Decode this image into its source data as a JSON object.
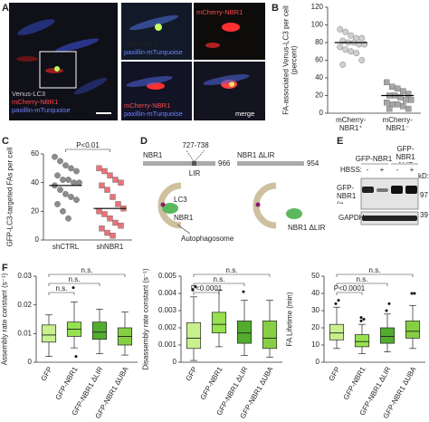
{
  "panel_letters": [
    "A",
    "B",
    "C",
    "D",
    "E",
    "F"
  ],
  "panel_a": {
    "main_labels": [
      "Venus-LC3",
      "mCherry-NBR1",
      "paxillin-mTurquoise"
    ],
    "tiles": [
      [
        "Venus-LC3",
        "paxillin-mTurquoise"
      ],
      [
        "mCherry-NBR1"
      ],
      [
        "mCherry-NBR1",
        "paxillin-mTurquoise"
      ],
      [
        "merge"
      ]
    ]
  },
  "panel_d": {
    "wildtype": {
      "name": "NBR1",
      "length": "966",
      "motif": "LIR",
      "motif_range": "727-738"
    },
    "mutant": {
      "name": "NBR1 ΔLIR",
      "length": "954"
    },
    "cartoon": {
      "lc3": "LC3",
      "cargo": "NBR1",
      "membrane": "Autophagosome",
      "cargo_mutant": "NBR1 ΔLIR"
    }
  },
  "panel_e": {
    "treatment": "HBSS:",
    "groups": [
      "GFP-NBR1",
      "GFP-NBR1 ΔLIR"
    ],
    "lanes": [
      "-",
      "+",
      "-",
      "+"
    ],
    "unit": "kD:",
    "rows": [
      "GFP-NBR1 (α-GFP)",
      "GAPDH"
    ],
    "markers": [
      "97",
      "39"
    ]
  },
  "chart_data": [
    {
      "type": "strip",
      "ylabel": "FA-associated Venus-LC3 per cell (percent)",
      "categories": [
        "mCherry-NBR1⁺",
        "mCherry-NBR1⁻"
      ],
      "series": [
        {
          "marker": "circle",
          "color": "#cfcfcf",
          "values": [
            95,
            92,
            88,
            85,
            85,
            82,
            80,
            80,
            78,
            78,
            75,
            72,
            70,
            68,
            60,
            55
          ],
          "mean": 80
        },
        {
          "marker": "square",
          "color": "#a6a6a6",
          "values": [
            35,
            30,
            28,
            25,
            22,
            20,
            20,
            18,
            15,
            15,
            12,
            10,
            10,
            8,
            5,
            5
          ],
          "mean": 20
        }
      ],
      "ylim": [
        0,
        120
      ],
      "yticks": [
        0,
        20,
        40,
        60,
        80,
        100,
        120
      ]
    },
    {
      "type": "strip",
      "ylabel": "GFP-LC3-targeted FAs per cell",
      "categories": [
        "shCTRL",
        "shNBR1"
      ],
      "series": [
        {
          "marker": "circle",
          "color": "#8c8c8c",
          "values": [
            58,
            55,
            52,
            50,
            48,
            45,
            42,
            42,
            40,
            40,
            38,
            35,
            32,
            30,
            28,
            25,
            20,
            15
          ],
          "mean": 38
        },
        {
          "marker": "square",
          "color": "#e8737a",
          "values": [
            50,
            48,
            45,
            42,
            40,
            38,
            35,
            30,
            25,
            22,
            20,
            18,
            15,
            12,
            10,
            8,
            5,
            3
          ],
          "mean": 22
        }
      ],
      "comparisons": [
        {
          "from": 0,
          "to": 1,
          "label": "P<0.01"
        }
      ],
      "ylim": [
        0,
        60
      ],
      "yticks": [
        0,
        20,
        40,
        60
      ]
    },
    {
      "type": "box",
      "ylabel": "Assembly rate constant (s⁻¹)",
      "categories": [
        "GFP",
        "GFP-NBR1",
        "GFP-NBR1 ΔLIR",
        "GFP-NBR1 ΔUBA"
      ],
      "boxes": [
        {
          "color": "#c8f08e",
          "low": 0.002,
          "q1": 0.007,
          "median": 0.0095,
          "q3": 0.013,
          "high": 0.0165,
          "outliers": []
        },
        {
          "color": "#97e04f",
          "low": 0.005,
          "q1": 0.009,
          "median": 0.0115,
          "q3": 0.014,
          "high": 0.021,
          "outliers": [
            0.026,
            0.002
          ]
        },
        {
          "color": "#52ad2e",
          "low": 0.003,
          "q1": 0.008,
          "median": 0.0105,
          "q3": 0.014,
          "high": 0.0185,
          "outliers": []
        },
        {
          "color": "#86cf44",
          "low": 0.0025,
          "q1": 0.006,
          "median": 0.009,
          "q3": 0.012,
          "high": 0.0175,
          "outliers": []
        }
      ],
      "comparisons": [
        {
          "from": 0,
          "to": 1,
          "label": "n.s."
        },
        {
          "from": 0,
          "to": 2,
          "label": "n.s."
        },
        {
          "from": 0,
          "to": 3,
          "label": "n.s."
        }
      ],
      "ylim": [
        0,
        0.03
      ],
      "yticks": [
        0,
        0.01,
        0.02,
        0.03
      ]
    },
    {
      "type": "box",
      "ylabel": "Disassembly rate constant (s⁻¹)",
      "categories": [
        "GFP",
        "GFP-NBR1",
        "GFP-NBR1 ΔLIR",
        "GFP-NBR1 ΔUBA"
      ],
      "boxes": [
        {
          "color": "#c8f08e",
          "low": 0.0001,
          "q1": 0.0008,
          "median": 0.0014,
          "q3": 0.0023,
          "high": 0.0038,
          "outliers": [
            0.0042,
            0.0044
          ]
        },
        {
          "color": "#97e04f",
          "low": 0.0009,
          "q1": 0.0017,
          "median": 0.0022,
          "q3": 0.0029,
          "high": 0.0042,
          "outliers": []
        },
        {
          "color": "#52ad2e",
          "low": 0.0004,
          "q1": 0.0011,
          "median": 0.0017,
          "q3": 0.0024,
          "high": 0.0036,
          "outliers": [
            0.0041
          ]
        },
        {
          "color": "#86cf44",
          "low": 0.0003,
          "q1": 0.0008,
          "median": 0.0014,
          "q3": 0.0024,
          "high": 0.0036,
          "outliers": []
        }
      ],
      "comparisons": [
        {
          "from": 0,
          "to": 1,
          "label": "P<0.0001"
        },
        {
          "from": 0,
          "to": 2,
          "label": "n.s."
        },
        {
          "from": 0,
          "to": 3,
          "label": "n.s."
        }
      ],
      "ylim": [
        0,
        0.005
      ],
      "yticks": [
        0,
        0.001,
        0.002,
        0.003,
        0.004,
        0.005
      ]
    },
    {
      "type": "box",
      "ylabel": "FA Lifetime (min)",
      "categories": [
        "GFP",
        "GFP-NBR1",
        "GFP-NBR1 ΔLIR",
        "GFP-NBR1 ΔUBA"
      ],
      "boxes": [
        {
          "color": "#c8f08e",
          "low": 8,
          "q1": 13,
          "median": 17,
          "q3": 22,
          "high": 32,
          "outliers": [
            34,
            36
          ]
        },
        {
          "color": "#97e04f",
          "low": 5,
          "q1": 9,
          "median": 12,
          "q3": 16,
          "high": 22,
          "outliers": [
            24,
            25,
            26
          ]
        },
        {
          "color": "#52ad2e",
          "low": 6,
          "q1": 11,
          "median": 15,
          "q3": 20,
          "high": 28,
          "outliers": [
            30,
            34
          ]
        },
        {
          "color": "#86cf44",
          "low": 8,
          "q1": 14,
          "median": 18,
          "q3": 24,
          "high": 33,
          "outliers": [
            40,
            40
          ]
        }
      ],
      "comparisons": [
        {
          "from": 0,
          "to": 1,
          "label": "P<0.0001"
        },
        {
          "from": 0,
          "to": 2,
          "label": "n.s."
        },
        {
          "from": 0,
          "to": 3,
          "label": "n.s."
        }
      ],
      "ylim": [
        0,
        50
      ],
      "yticks": [
        0,
        10,
        20,
        30,
        40,
        50
      ]
    }
  ]
}
